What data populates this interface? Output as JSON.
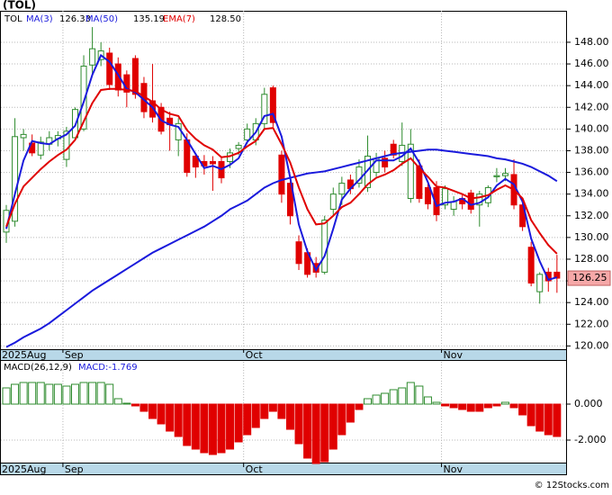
{
  "chart_data": [
    {
      "type": "candlestick",
      "title": "(TOL)",
      "legend_symbol": "TOL",
      "categories": [
        "2025Aug",
        null,
        null,
        null,
        null,
        null,
        null,
        "Sep",
        null,
        null,
        null,
        null,
        null,
        null,
        null,
        null,
        null,
        null,
        null,
        null,
        null,
        null,
        null,
        null,
        null,
        null,
        null,
        null,
        "Oct",
        null,
        null,
        null,
        null,
        null,
        null,
        null,
        null,
        null,
        null,
        null,
        null,
        null,
        null,
        null,
        null,
        null,
        null,
        null,
        null,
        null,
        null,
        "Nov",
        null,
        null,
        null,
        null,
        null,
        null,
        null,
        null,
        null,
        null,
        null,
        null,
        null
      ],
      "open": [
        130.5,
        131.5,
        139.2,
        138.7,
        137.6,
        138.6,
        139.1,
        137.2,
        139.2,
        140,
        145.9,
        146.4,
        147,
        146,
        145,
        146.5,
        144.2,
        142.6,
        142,
        141,
        139,
        139,
        137.5,
        137,
        137,
        137,
        137,
        138.2,
        139,
        139,
        140.5,
        143.8,
        137.6,
        135,
        129.6,
        128.6,
        127.6,
        126.8,
        132.6,
        134,
        135.3,
        135,
        134.6,
        136,
        137.3,
        138.6,
        137,
        133.6,
        136.6,
        134.6,
        134.6,
        133,
        132.6,
        133.6,
        134.1,
        133,
        133.2,
        135.6,
        135.7,
        135.8,
        133,
        129.1,
        125,
        126.8,
        126.8
      ],
      "high": [
        133,
        141,
        140,
        139.5,
        139.3,
        139.8,
        139.8,
        140.2,
        142,
        146.8,
        149.4,
        148,
        147.5,
        146.6,
        145.4,
        146.8,
        144.8,
        146,
        142.4,
        141.6,
        141,
        139.6,
        137.8,
        137.6,
        137.5,
        137.5,
        138.2,
        138.8,
        140.5,
        141,
        143.8,
        144,
        138,
        135.5,
        130.2,
        129,
        128.2,
        132,
        134.6,
        135.6,
        135.8,
        137.2,
        139.4,
        137.8,
        138,
        139,
        140.6,
        140,
        137.2,
        135,
        135.2,
        134.8,
        133.8,
        134,
        134.4,
        134.3,
        134.8,
        136.4,
        136.4,
        137.2,
        133.5,
        129.6,
        126.8,
        127.2,
        128.4
      ],
      "low": [
        129.5,
        131,
        138,
        137.5,
        137.2,
        138,
        138.4,
        136.5,
        139,
        139.8,
        145,
        145.8,
        143.6,
        143,
        142,
        142.8,
        141,
        140.6,
        139.5,
        138,
        137.5,
        135.6,
        135.5,
        135.8,
        134.3,
        135,
        136.4,
        137.6,
        138.6,
        138.5,
        140,
        140.2,
        133.2,
        131.2,
        127,
        126.3,
        126.3,
        126.6,
        132,
        133,
        134,
        134.6,
        134.2,
        135.6,
        136,
        137.3,
        136.6,
        133.2,
        133.2,
        132.6,
        131.5,
        132.6,
        132,
        132.6,
        132.2,
        131,
        132.8,
        135.1,
        135.2,
        132.6,
        130.6,
        125.5,
        123.9,
        125,
        124.9
      ],
      "close": [
        132.5,
        139.3,
        139.5,
        137.8,
        138.8,
        139.2,
        139.4,
        139.8,
        141.8,
        145.8,
        147.4,
        147.2,
        144.1,
        143.6,
        143.4,
        143.2,
        141.6,
        141.1,
        139.8,
        140.4,
        140.5,
        136,
        136.5,
        136.6,
        136.8,
        135.5,
        137.8,
        138.5,
        140,
        140.5,
        143.2,
        140.6,
        134,
        132,
        127.6,
        126.6,
        126.8,
        131.6,
        134,
        135,
        134.5,
        136.5,
        137.5,
        137.3,
        136.5,
        137.6,
        138.5,
        138.6,
        133.6,
        133.1,
        132.1,
        134.5,
        133.3,
        133.1,
        132.6,
        134,
        134.6,
        135.7,
        135.9,
        133,
        131,
        125.8,
        126.6,
        126,
        126.25
      ],
      "up_color": "#2e8b2e",
      "down_color": "#e00000",
      "series": [
        {
          "name": "MA(3)",
          "color": "#1a1adc",
          "values": [
            130.8,
            134.0,
            137.1,
            138.9,
            138.7,
            138.6,
            139.1,
            139.5,
            140.3,
            142.5,
            145.0,
            146.8,
            146.2,
            145.0,
            143.7,
            143.4,
            142.7,
            142.0,
            140.8,
            140.4,
            140.2,
            139.0,
            137.7,
            136.4,
            136.6,
            136.3,
            136.7,
            137.3,
            138.8,
            139.7,
            141.2,
            141.4,
            139.3,
            135.5,
            131.2,
            128.7,
            127.0,
            128.3,
            130.8,
            133.5,
            134.5,
            135.3,
            136.2,
            137.1,
            137.1,
            137.1,
            137.5,
            138.2,
            136.9,
            135.1,
            132.9,
            133.2,
            133.3,
            133.6,
            133.0,
            133.2,
            133.7,
            134.8,
            135.4,
            134.9,
            133.3,
            129.9,
            127.8,
            126.1,
            126.33
          ]
        },
        {
          "name": "MA(50)",
          "color": "#1a1adc",
          "values": [
            119.9,
            120.3,
            120.8,
            121.2,
            121.6,
            122.1,
            122.7,
            123.3,
            123.9,
            124.5,
            125.1,
            125.6,
            126.1,
            126.6,
            127.1,
            127.6,
            128.1,
            128.6,
            129.0,
            129.4,
            129.8,
            130.2,
            130.6,
            131.0,
            131.5,
            132.0,
            132.6,
            133.0,
            133.4,
            134.0,
            134.6,
            135.0,
            135.3,
            135.5,
            135.7,
            135.9,
            136.0,
            136.1,
            136.3,
            136.5,
            136.7,
            136.9,
            137.1,
            137.3,
            137.5,
            137.7,
            137.8,
            137.9,
            138.0,
            138.1,
            138.1,
            138.0,
            137.9,
            137.8,
            137.7,
            137.6,
            137.5,
            137.3,
            137.2,
            137.0,
            136.8,
            136.5,
            136.1,
            135.7,
            135.19
          ]
        },
        {
          "name": "EMA(7)",
          "color": "#e00000",
          "values": [
            131.0,
            133.1,
            134.7,
            135.5,
            136.3,
            137.0,
            137.6,
            138.1,
            139.0,
            140.7,
            142.4,
            143.6,
            143.7,
            143.7,
            143.6,
            143.5,
            143.0,
            142.5,
            141.8,
            141.4,
            141.2,
            139.9,
            139.1,
            138.5,
            138.1,
            137.4,
            137.5,
            137.8,
            138.4,
            138.9,
            140.0,
            140.1,
            138.6,
            136.9,
            134.6,
            132.6,
            131.2,
            131.3,
            132.0,
            132.8,
            133.2,
            134.0,
            134.9,
            135.5,
            135.8,
            136.2,
            136.8,
            137.3,
            136.4,
            135.6,
            134.7,
            134.6,
            134.3,
            134.0,
            133.6,
            133.7,
            133.9,
            134.4,
            134.8,
            134.4,
            133.6,
            131.6,
            130.4,
            129.3,
            128.5
          ],
          "value_labels": [
            null,
            null,
            null,
            null,
            null,
            null,
            null,
            null,
            null,
            null,
            null,
            null,
            null,
            null,
            null,
            null,
            null,
            null,
            null,
            null,
            null,
            null,
            null,
            null,
            null,
            null,
            null,
            null,
            null,
            null,
            null,
            null,
            null,
            null,
            null,
            null,
            null,
            null,
            null,
            null,
            null,
            null,
            null,
            null,
            null,
            null,
            null,
            null,
            null,
            null,
            null,
            null,
            null,
            null,
            null,
            null,
            null,
            null,
            null,
            null,
            null,
            null,
            null,
            null,
            "128.50"
          ]
        }
      ],
      "ylim": [
        119.7,
        150.9
      ],
      "yticks": [
        {
          "value": 120,
          "label": "120.00"
        },
        {
          "value": 122,
          "label": "122.00"
        },
        {
          "value": 124,
          "label": "124.00"
        },
        {
          "value": 126,
          "label": "126.00"
        },
        {
          "value": 128,
          "label": "128.00"
        },
        {
          "value": 130,
          "label": "130.00"
        },
        {
          "value": 132,
          "label": "132.00"
        },
        {
          "value": 134,
          "label": "134.00"
        },
        {
          "value": 136,
          "label": "136.00"
        },
        {
          "value": 138,
          "label": "138.00"
        },
        {
          "value": 140,
          "label": "140.00"
        },
        {
          "value": 142,
          "label": "142.00"
        },
        {
          "value": 144,
          "label": "144.00"
        },
        {
          "value": 146,
          "label": "146.00"
        },
        {
          "value": 148,
          "label": "148.00"
        }
      ],
      "grid": true
    },
    {
      "type": "bar",
      "title": "MACD(26,12,9)",
      "legend": "MACD:-1.769",
      "values": [
        0.9,
        1.1,
        1.2,
        1.2,
        1.2,
        1.1,
        1.1,
        1.0,
        1.1,
        1.2,
        1.2,
        1.2,
        1.1,
        0.3,
        0.05,
        -0.1,
        -0.4,
        -0.8,
        -1.1,
        -1.5,
        -1.8,
        -2.3,
        -2.5,
        -2.7,
        -2.8,
        -2.7,
        -2.5,
        -2.1,
        -1.7,
        -1.3,
        -0.8,
        -0.4,
        -0.8,
        -1.4,
        -2.2,
        -3.0,
        -3.3,
        -3.2,
        -2.5,
        -1.7,
        -1.0,
        -0.3,
        0.3,
        0.5,
        0.6,
        0.8,
        0.9,
        1.2,
        1.0,
        0.4,
        0.1,
        -0.1,
        -0.2,
        -0.3,
        -0.4,
        -0.4,
        -0.2,
        -0.1,
        0.1,
        -0.2,
        -0.6,
        -1.2,
        -1.5,
        -1.7,
        -1.8
      ],
      "up_color": "#2e8b2e",
      "down_color": "#e00000",
      "ylim": [
        -3.3,
        2.35
      ],
      "yticks": [
        {
          "value": 0,
          "label": "0.000"
        },
        {
          "value": -2,
          "label": "-2.000"
        }
      ],
      "grid": true
    }
  ],
  "footer": "© 12Stocks.com"
}
